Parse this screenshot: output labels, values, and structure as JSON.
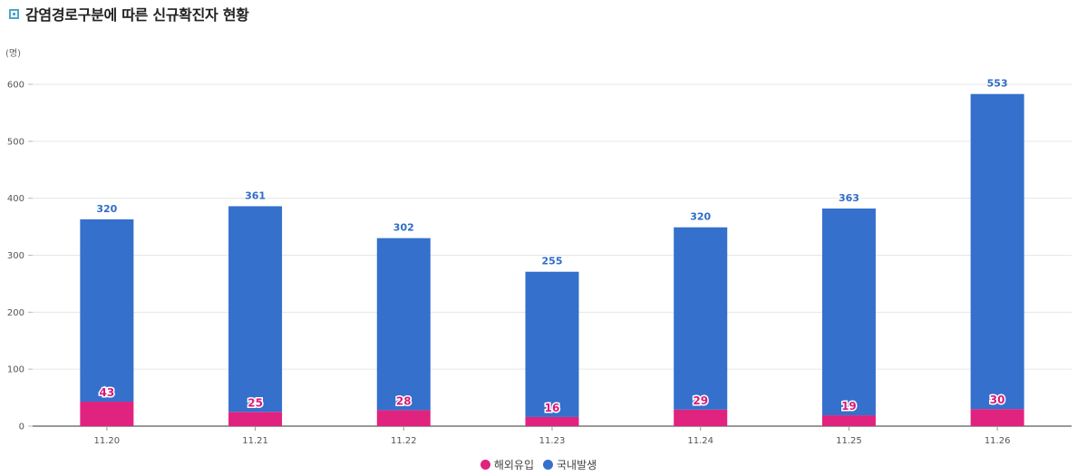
{
  "header": {
    "title": "감염경로구분에 따른 신규확진자 현황",
    "title_icon": "square-bullet-icon"
  },
  "chart_data": {
    "type": "bar",
    "stacked": true,
    "unit_label": "(명)",
    "categories": [
      "11.20",
      "11.21",
      "11.22",
      "11.23",
      "11.24",
      "11.25",
      "11.26"
    ],
    "series": [
      {
        "name": "해외유입",
        "values": [
          43,
          25,
          28,
          16,
          29,
          19,
          30
        ],
        "color": "#e0237f"
      },
      {
        "name": "국내발생",
        "values": [
          320,
          361,
          302,
          255,
          320,
          363,
          553
        ],
        "color": "#3470cc"
      }
    ],
    "ylim": [
      0,
      600
    ],
    "yticks": [
      0,
      100,
      200,
      300,
      400,
      500,
      600
    ],
    "grid": true,
    "legend_position": "bottom-center",
    "title": "",
    "xlabel": "",
    "ylabel": "(명)"
  }
}
